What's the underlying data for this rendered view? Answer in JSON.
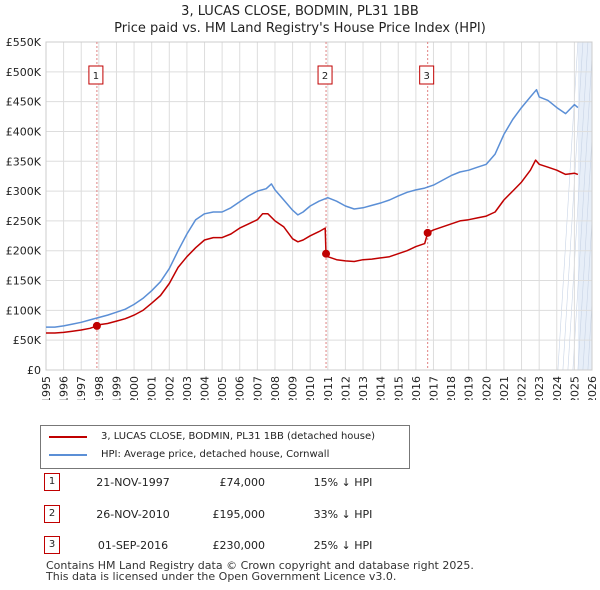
{
  "title": "3, LUCAS CLOSE, BODMIN, PL31 1BB",
  "subtitle": "Price paid vs. HM Land Registry's House Price Index (HPI)",
  "colors": {
    "property": "#c00000",
    "hpi": "#5b8fd6",
    "grid": "#dddddd",
    "marker_line": "#e08080",
    "shade": "#e7eef8"
  },
  "chart_data": {
    "type": "line",
    "xlim": [
      1995,
      2026
    ],
    "ylim": [
      0,
      550000
    ],
    "y_ticks": [
      0,
      50000,
      100000,
      150000,
      200000,
      250000,
      300000,
      350000,
      400000,
      450000,
      500000,
      550000
    ],
    "y_tick_labels": [
      "£0",
      "£50K",
      "£100K",
      "£150K",
      "£200K",
      "£250K",
      "£300K",
      "£350K",
      "£400K",
      "£450K",
      "£500K",
      "£550K"
    ],
    "x_ticks": [
      1995,
      1996,
      1997,
      1998,
      1999,
      2000,
      2001,
      2002,
      2003,
      2004,
      2005,
      2006,
      2007,
      2008,
      2009,
      2010,
      2011,
      2012,
      2013,
      2014,
      2015,
      2016,
      2017,
      2018,
      2019,
      2020,
      2021,
      2022,
      2023,
      2024,
      2025,
      2026
    ],
    "x_tick_labels": [
      "1995",
      "1996",
      "1997",
      "1998",
      "1999",
      "2000",
      "2001",
      "2002",
      "2003",
      "2004",
      "2005",
      "2006",
      "2007",
      "2008",
      "2009",
      "2010",
      "2011",
      "2012",
      "2013",
      "2014",
      "2015",
      "2016",
      "2017",
      "2018",
      "2019",
      "2020",
      "2021",
      "2022",
      "2023",
      "2024",
      "2025",
      "2026"
    ],
    "forecast_start": 2025.2,
    "series": [
      {
        "name": "3, LUCAS CLOSE, BODMIN, PL31 1BB (detached house)",
        "color": "#c00000",
        "x": [
          1995.0,
          1995.5,
          1996.0,
          1996.5,
          1997.0,
          1997.5,
          1997.89,
          1998.0,
          1998.5,
          1999.0,
          1999.5,
          2000.0,
          2000.5,
          2001.0,
          2001.5,
          2002.0,
          2002.5,
          2003.0,
          2003.5,
          2004.0,
          2004.5,
          2005.0,
          2005.5,
          2006.0,
          2006.5,
          2007.0,
          2007.3,
          2007.6,
          2008.0,
          2008.5,
          2009.0,
          2009.3,
          2009.6,
          2010.0,
          2010.5,
          2010.85,
          2010.9,
          2011.0,
          2011.5,
          2012.0,
          2012.5,
          2013.0,
          2013.5,
          2014.0,
          2014.5,
          2015.0,
          2015.5,
          2016.0,
          2016.5,
          2016.67,
          2017.0,
          2017.5,
          2018.0,
          2018.5,
          2019.0,
          2019.5,
          2020.0,
          2020.5,
          2021.0,
          2021.5,
          2022.0,
          2022.5,
          2022.8,
          2023.0,
          2023.5,
          2024.0,
          2024.5,
          2025.0,
          2025.2
        ],
        "y": [
          62000,
          62000,
          63000,
          65000,
          67000,
          70000,
          74000,
          76000,
          78000,
          82000,
          86000,
          92000,
          100000,
          112000,
          125000,
          145000,
          172000,
          190000,
          205000,
          218000,
          222000,
          222000,
          228000,
          238000,
          245000,
          252000,
          262000,
          262000,
          250000,
          240000,
          220000,
          215000,
          218000,
          225000,
          232000,
          238000,
          195000,
          190000,
          185000,
          183000,
          182000,
          185000,
          186000,
          188000,
          190000,
          195000,
          200000,
          207000,
          212000,
          230000,
          235000,
          240000,
          245000,
          250000,
          252000,
          255000,
          258000,
          265000,
          285000,
          300000,
          315000,
          335000,
          352000,
          345000,
          340000,
          335000,
          328000,
          330000,
          328000
        ]
      },
      {
        "name": "HPI: Average price, detached house, Cornwall",
        "color": "#5b8fd6",
        "x": [
          1995.0,
          1995.5,
          1996.0,
          1996.5,
          1997.0,
          1997.5,
          1998.0,
          1998.5,
          1999.0,
          1999.5,
          2000.0,
          2000.5,
          2001.0,
          2001.5,
          2002.0,
          2002.5,
          2003.0,
          2003.5,
          2004.0,
          2004.5,
          2005.0,
          2005.5,
          2006.0,
          2006.5,
          2007.0,
          2007.5,
          2007.8,
          2008.0,
          2008.5,
          2009.0,
          2009.3,
          2009.6,
          2010.0,
          2010.5,
          2011.0,
          2011.5,
          2012.0,
          2012.5,
          2013.0,
          2013.5,
          2014.0,
          2014.5,
          2015.0,
          2015.5,
          2016.0,
          2016.5,
          2017.0,
          2017.5,
          2018.0,
          2018.5,
          2019.0,
          2019.5,
          2020.0,
          2020.5,
          2021.0,
          2021.5,
          2022.0,
          2022.5,
          2022.85,
          2023.0,
          2023.5,
          2024.0,
          2024.5,
          2025.0,
          2025.2
        ],
        "y": [
          72000,
          72000,
          74000,
          77000,
          80000,
          84000,
          88000,
          92000,
          97000,
          102000,
          110000,
          120000,
          133000,
          148000,
          170000,
          200000,
          228000,
          252000,
          262000,
          265000,
          265000,
          272000,
          282000,
          292000,
          300000,
          304000,
          312000,
          302000,
          285000,
          268000,
          260000,
          265000,
          275000,
          283000,
          289000,
          283000,
          275000,
          270000,
          272000,
          276000,
          280000,
          285000,
          292000,
          298000,
          302000,
          305000,
          310000,
          318000,
          326000,
          332000,
          335000,
          340000,
          345000,
          362000,
          395000,
          420000,
          440000,
          458000,
          470000,
          458000,
          452000,
          440000,
          430000,
          445000,
          440000
        ]
      }
    ],
    "sales": [
      {
        "label": "1",
        "x": 1997.89,
        "y": 74000
      },
      {
        "label": "2",
        "x": 2010.9,
        "y": 195000
      },
      {
        "label": "3",
        "x": 2016.67,
        "y": 230000
      }
    ]
  },
  "legend": {
    "property": "3, LUCAS CLOSE, BODMIN, PL31 1BB (detached house)",
    "hpi": "HPI: Average price, detached house, Cornwall"
  },
  "transactions": [
    {
      "num": "1",
      "date": "21-NOV-1997",
      "price": "£74,000",
      "hpi": "15% ↓ HPI"
    },
    {
      "num": "2",
      "date": "26-NOV-2010",
      "price": "£195,000",
      "hpi": "33% ↓ HPI"
    },
    {
      "num": "3",
      "date": "01-SEP-2016",
      "price": "£230,000",
      "hpi": "25% ↓ HPI"
    }
  ],
  "footer": {
    "line1": "Contains HM Land Registry data © Crown copyright and database right 2025.",
    "line2": "This data is licensed under the Open Government Licence v3.0."
  }
}
